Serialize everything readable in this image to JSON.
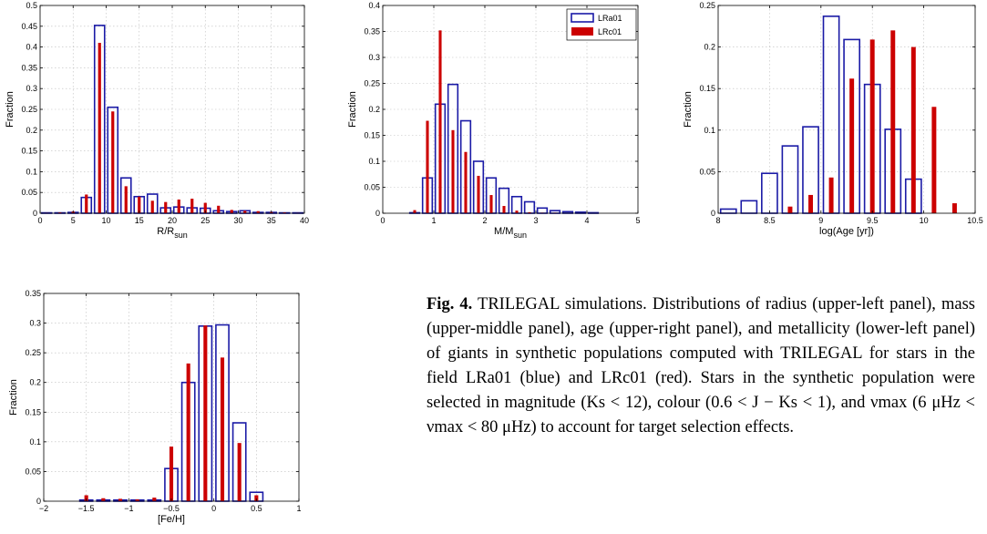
{
  "colors": {
    "blue": "#1a1aa6",
    "red": "#cc0000"
  },
  "legend": {
    "lra": "LRa01",
    "lrc": "LRc01"
  },
  "chart_data": [
    {
      "type": "bar",
      "panel": "upper-left",
      "xlabel": "R/R",
      "xlabel_sub": "sun",
      "ylabel": "Fraction",
      "xlim": [
        0,
        40
      ],
      "ylim": [
        0,
        0.5
      ],
      "xticks": [
        0,
        5,
        10,
        15,
        20,
        25,
        30,
        35,
        40
      ],
      "yticks": [
        0,
        0.05,
        0.1,
        0.15,
        0.2,
        0.25,
        0.3,
        0.35,
        0.4,
        0.45,
        0.5
      ],
      "bin_width": 2,
      "x": [
        1,
        3,
        5,
        7,
        9,
        11,
        13,
        15,
        17,
        19,
        21,
        23,
        25,
        27,
        29,
        31,
        33,
        35,
        37,
        39
      ],
      "series": [
        {
          "name": "LRa01",
          "values": [
            0.001,
            0.001,
            0.002,
            0.038,
            0.452,
            0.255,
            0.085,
            0.04,
            0.046,
            0.013,
            0.015,
            0.013,
            0.012,
            0.006,
            0.004,
            0.006,
            0.002,
            0.002,
            0.001,
            0.001
          ]
        },
        {
          "name": "LRc01",
          "values": [
            0.001,
            0.002,
            0.004,
            0.045,
            0.41,
            0.245,
            0.065,
            0.04,
            0.03,
            0.027,
            0.033,
            0.035,
            0.025,
            0.018,
            0.008,
            0.006,
            0.005,
            0.003,
            0.002,
            0.001
          ]
        }
      ]
    },
    {
      "type": "bar",
      "panel": "upper-middle",
      "xlabel": "M/M",
      "xlabel_sub": "sun",
      "ylabel": "Fraction",
      "xlim": [
        0,
        5
      ],
      "ylim": [
        0,
        0.4
      ],
      "xticks": [
        0,
        1,
        2,
        3,
        4,
        5
      ],
      "yticks": [
        0,
        0.05,
        0.1,
        0.15,
        0.2,
        0.25,
        0.3,
        0.35,
        0.4
      ],
      "bin_width": 0.25,
      "x": [
        0.125,
        0.375,
        0.625,
        0.875,
        1.125,
        1.375,
        1.625,
        1.875,
        2.125,
        2.375,
        2.625,
        2.875,
        3.125,
        3.375,
        3.625,
        3.875,
        4.125,
        4.375,
        4.625,
        4.875
      ],
      "legend_position": "top-right",
      "series": [
        {
          "name": "LRa01",
          "values": [
            0,
            0,
            0.001,
            0.068,
            0.21,
            0.248,
            0.178,
            0.1,
            0.068,
            0.048,
            0.032,
            0.022,
            0.01,
            0.005,
            0.003,
            0.002,
            0.001,
            0,
            0,
            0
          ]
        },
        {
          "name": "LRc01",
          "values": [
            0,
            0,
            0.006,
            0.178,
            0.352,
            0.16,
            0.118,
            0.072,
            0.035,
            0.014,
            0.005,
            0.002,
            0.001,
            0.001,
            0,
            0,
            0,
            0,
            0,
            0
          ]
        }
      ]
    },
    {
      "type": "bar",
      "panel": "upper-right",
      "xlabel": "log(Age [yr])",
      "ylabel": "Fraction",
      "xlim": [
        8,
        10.5
      ],
      "ylim": [
        0,
        0.25
      ],
      "xticks": [
        8,
        8.5,
        9,
        9.5,
        10,
        10.5
      ],
      "yticks": [
        0,
        0.05,
        0.1,
        0.15,
        0.2,
        0.25
      ],
      "bin_width": 0.2,
      "x": [
        8.1,
        8.3,
        8.5,
        8.7,
        8.9,
        9.1,
        9.3,
        9.5,
        9.7,
        9.9,
        10.1,
        10.3
      ],
      "series": [
        {
          "name": "LRa01",
          "values": [
            0.005,
            0.015,
            0.048,
            0.081,
            0.104,
            0.237,
            0.209,
            0.155,
            0.101,
            0.041,
            0,
            0
          ]
        },
        {
          "name": "LRc01",
          "values": [
            0,
            0,
            0,
            0.008,
            0.022,
            0.043,
            0.162,
            0.209,
            0.22,
            0.2,
            0.128,
            0.012
          ]
        }
      ]
    },
    {
      "type": "bar",
      "panel": "lower-left",
      "xlabel": "[Fe/H]",
      "ylabel": "Fraction",
      "xlim": [
        -2,
        1
      ],
      "ylim": [
        0,
        0.35
      ],
      "xticks": [
        -2,
        -1.5,
        -1,
        -0.5,
        0,
        0.5,
        1
      ],
      "xtick_labels": [
        "−2",
        "−1.5",
        "−1",
        "−0.5",
        "0",
        "0.5",
        "1"
      ],
      "yticks": [
        0,
        0.05,
        0.1,
        0.15,
        0.2,
        0.25,
        0.3,
        0.35
      ],
      "bin_width": 0.2,
      "x": [
        -1.5,
        -1.3,
        -1.1,
        -0.9,
        -0.7,
        -0.5,
        -0.3,
        -0.1,
        0.1,
        0.3,
        0.5
      ],
      "series": [
        {
          "name": "LRa01",
          "values": [
            0.002,
            0.002,
            0.002,
            0.002,
            0.002,
            0.055,
            0.2,
            0.295,
            0.297,
            0.132,
            0.015
          ]
        },
        {
          "name": "LRc01",
          "values": [
            0.01,
            0.005,
            0.004,
            0.003,
            0.006,
            0.092,
            0.232,
            0.296,
            0.242,
            0.098,
            0.01
          ]
        }
      ]
    }
  ],
  "caption": {
    "label": "Fig. 4.",
    "text": "TRILEGAL simulations. Distributions of radius (upper-left panel), mass (upper-middle panel), age (upper-right panel), and metallicity (lower-left panel) of giants in synthetic populations computed with TRILEGAL for stars in the field LRa01 (blue) and LRc01 (red). Stars in the synthetic population were selected in magnitude (Ks < 12), colour (0.6 < J − Ks < 1), and νmax (6 μHz < νmax < 80 μHz) to account for target selection effects."
  }
}
